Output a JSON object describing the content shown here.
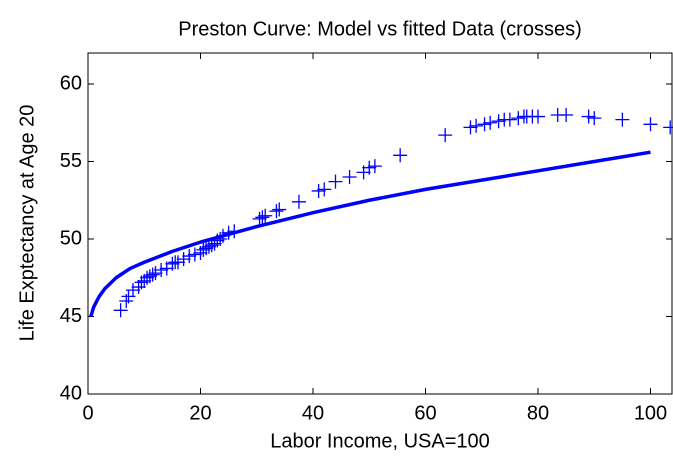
{
  "chart_data": {
    "type": "line",
    "title": "Preston Curve: Model vs fitted Data (crosses)",
    "xlabel": "Labor Income, USA=100",
    "ylabel": "Life Exptectancy at Age 20",
    "xlim": [
      0,
      104
    ],
    "ylim": [
      40,
      62
    ],
    "xticks": [
      0,
      20,
      40,
      60,
      80,
      100
    ],
    "yticks": [
      40,
      45,
      50,
      55,
      60
    ],
    "series": [
      {
        "style": "line",
        "color": "#0000ff",
        "x": [
          0.5,
          1,
          2,
          3,
          5,
          7.5,
          10,
          15,
          20,
          25,
          30,
          40,
          50,
          60,
          70,
          80,
          90,
          100
        ],
        "values": [
          45.0,
          45.6,
          46.3,
          46.8,
          47.5,
          48.1,
          48.5,
          49.2,
          49.8,
          50.3,
          50.8,
          51.7,
          52.5,
          53.2,
          53.8,
          54.4,
          55.0,
          55.6
        ]
      },
      {
        "style": "markers",
        "color": "#0000ff",
        "x": [
          5.8,
          6.8,
          7.2,
          8,
          9,
          9.5,
          10,
          10.5,
          11,
          11.5,
          12,
          13,
          14,
          15,
          15.5,
          16,
          17,
          18,
          19,
          20,
          20.5,
          21,
          21.5,
          22,
          22.5,
          23,
          23.5,
          24,
          25,
          26,
          30.5,
          31,
          31.5,
          33.5,
          34,
          37.5,
          41,
          42,
          44,
          46.5,
          49,
          50,
          51,
          55.5,
          63.5,
          68,
          69,
          70.5,
          71.5,
          73,
          74,
          75,
          76.5,
          77.5,
          78,
          79,
          80,
          83.5,
          85,
          89,
          90,
          95,
          100,
          103.5
        ],
        "values": [
          45.4,
          46,
          46.3,
          46.7,
          46.9,
          47.2,
          47.3,
          47.5,
          47.6,
          47.7,
          47.8,
          48,
          48.1,
          48.4,
          48.5,
          48.5,
          48.7,
          48.9,
          49,
          49.1,
          49.3,
          49.4,
          49.5,
          49.6,
          49.7,
          49.9,
          50,
          50.2,
          50.4,
          50.5,
          51.3,
          51.4,
          51.5,
          51.8,
          51.9,
          52.4,
          53.1,
          53.2,
          53.7,
          54,
          54.3,
          54.6,
          54.7,
          55.4,
          56.7,
          57.2,
          57.3,
          57.4,
          57.5,
          57.6,
          57.7,
          57.7,
          57.8,
          57.9,
          57.9,
          57.9,
          57.9,
          58,
          58,
          57.9,
          57.8,
          57.7,
          57.4,
          57.2
        ]
      }
    ]
  }
}
